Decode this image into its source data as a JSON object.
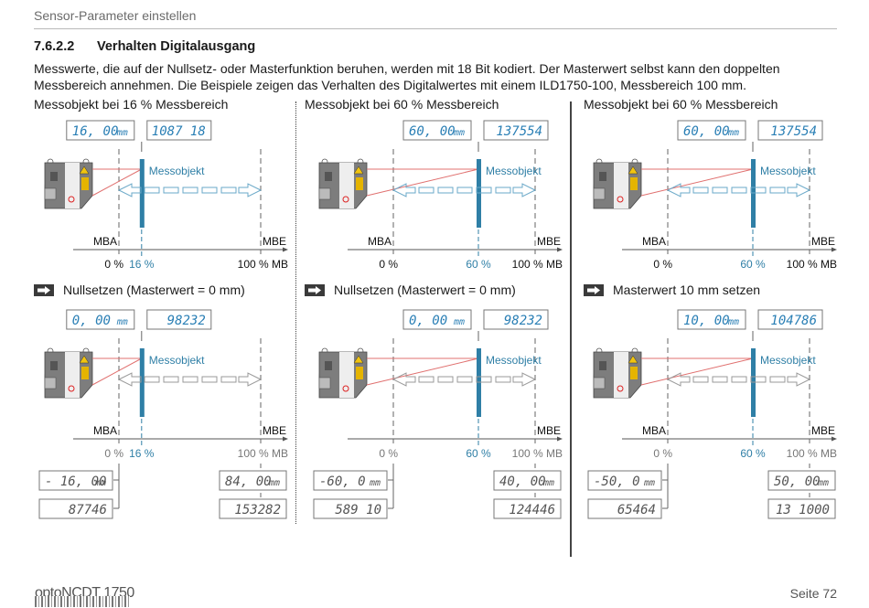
{
  "header": {
    "running_title": "Sensor-Parameter einstellen"
  },
  "section": {
    "number": "7.6.2.2",
    "title": "Verhalten Digitalausgang",
    "intro_line1": "Messwerte, die auf der Nullsetz- oder Masterfunktion beruhen, werden mit 18 Bit kodiert. Der Masterwert selbst kann den doppelten",
    "intro_line2": "Messbereich annehmen. Die Beispiele zeigen das Verhalten des Digitalwertes mit einem ILD1750-100, Messbereich 100 mm."
  },
  "labels": {
    "object": "Messobjekt",
    "mba": "MBA",
    "mbe": "MBE",
    "zero_pct": "0 %",
    "full_pct": "100 % MB",
    "unit": "mm"
  },
  "colors": {
    "accent_blue": "#2f7fa6",
    "laser_red": "#e0706f",
    "lcd_blue": "#2a7fb5",
    "lcd_gray": "#555555",
    "target_bar": "#2f7fa6"
  },
  "columns": [
    {
      "caption": "Messobjekt bei 16 % Messbereich",
      "step_caption": "Nullsetzen (Masterwert = 0 mm)",
      "top": {
        "position_pct": 16,
        "position_label": "16 %",
        "display_mm": "16, 00",
        "display_digital": "1087 18",
        "show_mba": true
      },
      "bottom": {
        "position_pct": 16,
        "position_label": "16 %",
        "display_mm": "0, 00",
        "display_digital": "98232",
        "show_mba": true,
        "mba_mm": "- 16, 00",
        "mba_digital": "87746",
        "mbe_mm": "84, 00",
        "mbe_digital": "153282"
      }
    },
    {
      "caption": "Messobjekt bei 60 % Messbereich",
      "step_caption": "Nullsetzen (Masterwert = 0 mm)",
      "top": {
        "position_pct": 60,
        "position_label": "60 %",
        "display_mm": "60, 00",
        "display_digital": "137554",
        "show_mba": true
      },
      "bottom": {
        "position_pct": 60,
        "position_label": "60 %",
        "display_mm": "0, 00",
        "display_digital": "98232",
        "show_mba": false,
        "mba_mm": "-60, 0",
        "mba_digital": "589 10",
        "mbe_mm": "40, 00",
        "mbe_digital": "124446"
      }
    },
    {
      "caption": "Messobjekt bei 60 % Messbereich",
      "step_caption": "Masterwert 10 mm setzen",
      "top": {
        "position_pct": 60,
        "position_label": "60 %",
        "display_mm": "60, 00",
        "display_digital": "137554",
        "show_mba": true
      },
      "bottom": {
        "position_pct": 60,
        "position_label": "60 %",
        "display_mm": "10, 00",
        "display_digital": "104786",
        "show_mba": true,
        "mba_mm": "-50, 0",
        "mba_digital": "65464",
        "mbe_mm": "50, 00",
        "mbe_digital": "13 1000"
      }
    }
  ],
  "footer": {
    "brand": "optoNCDT 1750",
    "page": "Seite 72"
  }
}
